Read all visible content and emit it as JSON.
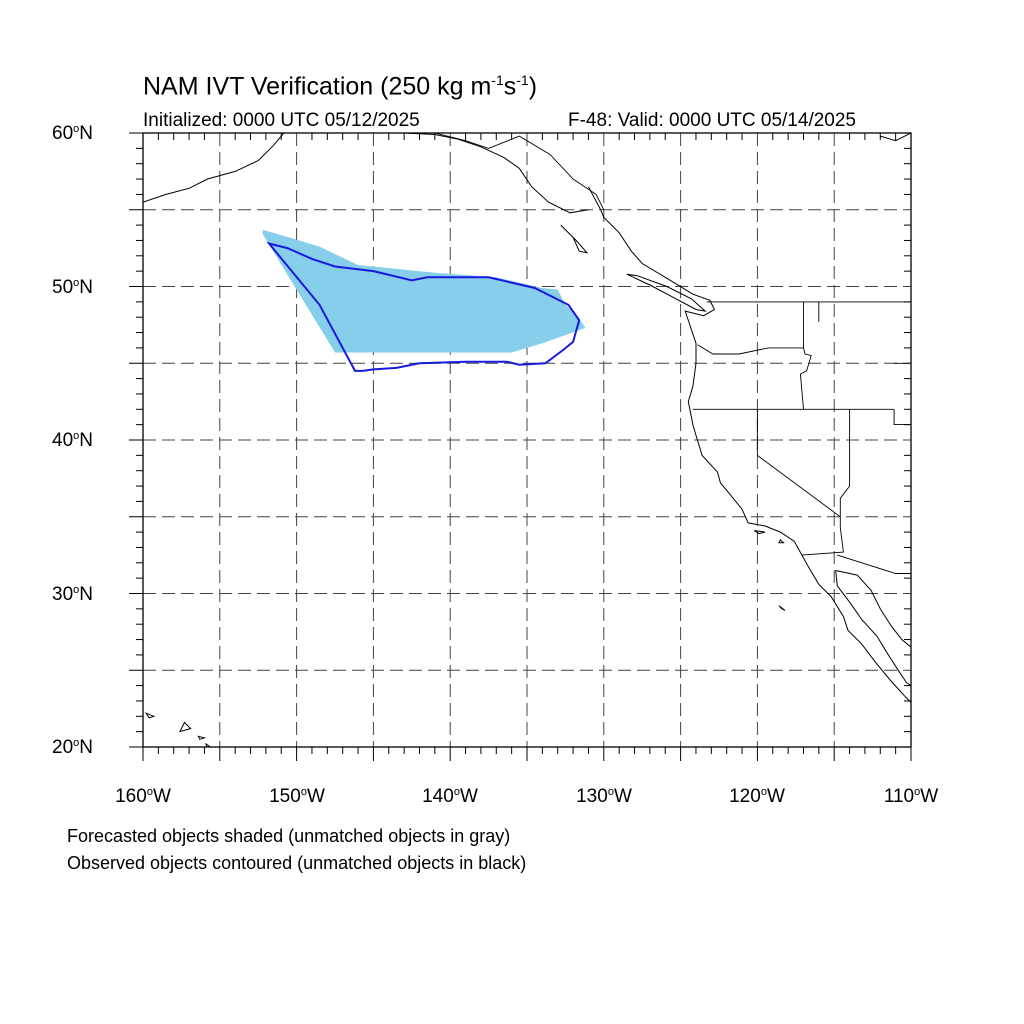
{
  "header": {
    "title_prefix": "NAM IVT Verification (250 kg m",
    "title_exp1": "-1",
    "title_mid": "s",
    "title_exp2": "-1",
    "title_suffix": ")",
    "initialized": "Initialized: 0000 UTC 05/12/2025",
    "valid": "F-48: Valid: 0000 UTC 05/14/2025"
  },
  "map": {
    "lon_range": [
      -160,
      -110
    ],
    "lat_range": [
      20,
      60
    ],
    "grid_style": "dashed",
    "lat_labels": [
      {
        "deg": "60",
        "suffix": "N"
      },
      {
        "deg": "50",
        "suffix": "N"
      },
      {
        "deg": "40",
        "suffix": "N"
      },
      {
        "deg": "30",
        "suffix": "N"
      },
      {
        "deg": "20",
        "suffix": "N"
      }
    ],
    "lon_labels": [
      {
        "deg": "160",
        "suffix": "W"
      },
      {
        "deg": "150",
        "suffix": "W"
      },
      {
        "deg": "140",
        "suffix": "W"
      },
      {
        "deg": "130",
        "suffix": "W"
      },
      {
        "deg": "120",
        "suffix": "W"
      },
      {
        "deg": "110",
        "suffix": "W"
      }
    ],
    "forecast_object": {
      "color": "#87ceeb",
      "outline_lonlat": [
        [
          -152.2,
          53.7
        ],
        [
          -150.5,
          53.2
        ],
        [
          -148.5,
          52.6
        ],
        [
          -146,
          51.4
        ],
        [
          -141,
          50.9
        ],
        [
          -137,
          50.6
        ],
        [
          -134,
          49.9
        ],
        [
          -133,
          49.8
        ],
        [
          -132.5,
          48.8
        ],
        [
          -131.8,
          48.2
        ],
        [
          -131.2,
          47.3
        ],
        [
          -132.6,
          46.8
        ],
        [
          -134,
          46.3
        ],
        [
          -136,
          45.7
        ],
        [
          -139,
          45.7
        ],
        [
          -143,
          45.7
        ],
        [
          -145,
          45.7
        ],
        [
          -147.5,
          45.7
        ],
        [
          -152.2,
          53.4
        ]
      ]
    },
    "observed_object": {
      "color": "#1a1adc",
      "outline_lonlat": [
        [
          -151.8,
          52.8
        ],
        [
          -150.6,
          52.5
        ],
        [
          -149,
          51.8
        ],
        [
          -147.5,
          51.3
        ],
        [
          -145,
          51.0
        ],
        [
          -142.5,
          50.4
        ],
        [
          -141.5,
          50.6
        ],
        [
          -137.5,
          50.6
        ],
        [
          -134.5,
          49.9
        ],
        [
          -132.3,
          48.8
        ],
        [
          -131.6,
          47.8
        ],
        [
          -132.0,
          46.4
        ],
        [
          -132.6,
          45.9
        ],
        [
          -133.8,
          45.0
        ],
        [
          -135.5,
          44.9
        ],
        [
          -136.3,
          45.1
        ],
        [
          -139,
          45.1
        ],
        [
          -142,
          45.0
        ],
        [
          -143.5,
          44.7
        ],
        [
          -145,
          44.6
        ],
        [
          -145.7,
          44.5
        ],
        [
          -146.2,
          44.5
        ],
        [
          -148.5,
          48.8
        ],
        [
          -151.8,
          52.8
        ]
      ]
    },
    "coastline_lonlat": [
      [
        [
          -110,
          60
        ],
        [
          -111,
          59.5
        ],
        [
          -112,
          59.8
        ]
      ],
      [
        [
          -131,
          56.5
        ],
        [
          -130.2,
          55
        ],
        [
          -130,
          54.5
        ],
        [
          -129,
          53.5
        ],
        [
          -128.2,
          52.3
        ],
        [
          -127.5,
          51.5
        ],
        [
          -125.5,
          50.3
        ],
        [
          -124.2,
          49.5
        ],
        [
          -123.1,
          49.1
        ],
        [
          -122.8,
          48.5
        ],
        [
          -123.5,
          48.1
        ],
        [
          -124.7,
          48.4
        ],
        [
          -124.3,
          47.2
        ],
        [
          -124,
          46.3
        ],
        [
          -124.0,
          45.0
        ],
        [
          -124.2,
          43.5
        ],
        [
          -124.5,
          42.5
        ],
        [
          -124.2,
          41.0
        ],
        [
          -124.0,
          40.3
        ],
        [
          -123.6,
          39.0
        ],
        [
          -122.6,
          37.9
        ],
        [
          -122.4,
          37.2
        ],
        [
          -121.9,
          36.6
        ],
        [
          -121.0,
          35.5
        ],
        [
          -120.6,
          34.6
        ],
        [
          -119.5,
          34.4
        ],
        [
          -118.5,
          34.0
        ],
        [
          -117.6,
          33.4
        ],
        [
          -117.1,
          32.5
        ],
        [
          -116.6,
          31.6
        ],
        [
          -116.0,
          30.6
        ],
        [
          -115.2,
          29.8
        ],
        [
          -114.4,
          28.5
        ],
        [
          -114.1,
          27.6
        ],
        [
          -113.2,
          26.7
        ],
        [
          -112.3,
          25.5
        ],
        [
          -111.3,
          24.3
        ],
        [
          -110.3,
          23.2
        ],
        [
          -110,
          22.9
        ]
      ],
      [
        [
          -114.9,
          31.5
        ],
        [
          -114.8,
          30.5
        ],
        [
          -113.9,
          29.3
        ],
        [
          -113.2,
          28.3
        ],
        [
          -112.2,
          27.2
        ],
        [
          -111.6,
          26.2
        ],
        [
          -110.9,
          25.1
        ],
        [
          -110.3,
          24.2
        ],
        [
          -110,
          24.0
        ]
      ],
      [
        [
          -114.9,
          31.5
        ],
        [
          -113.5,
          31.2
        ],
        [
          -112.6,
          30.2
        ],
        [
          -112,
          29.0
        ],
        [
          -111.3,
          27.9
        ],
        [
          -110.6,
          27.0
        ],
        [
          -110,
          26.5
        ]
      ],
      [
        [
          -150,
          61
        ],
        [
          -151.5,
          59.2
        ],
        [
          -152.5,
          58.2
        ],
        [
          -154,
          57.5
        ],
        [
          -155.8,
          57.0
        ],
        [
          -157,
          56.4
        ],
        [
          -158.5,
          56.0
        ],
        [
          -160,
          55.5
        ]
      ],
      [
        [
          -147,
          60.8
        ],
        [
          -145,
          60.3
        ],
        [
          -143,
          60.0
        ],
        [
          -141,
          59.9
        ],
        [
          -139.5,
          59.6
        ],
        [
          -138,
          59.1
        ],
        [
          -136.5,
          58.4
        ],
        [
          -135.5,
          57.7
        ],
        [
          -134.7,
          56.5
        ],
        [
          -133.6,
          55.5
        ],
        [
          -132.2,
          54.8
        ],
        [
          -131,
          55
        ]
      ]
    ],
    "islands_lonlat": [
      [
        [
          -132.8,
          54.0
        ],
        [
          -132.0,
          53.2
        ],
        [
          -131.6,
          52.3
        ],
        [
          -131.1,
          52.2
        ],
        [
          -131.8,
          53.0
        ],
        [
          -132.8,
          54.0
        ]
      ],
      [
        [
          -128.5,
          50.8
        ],
        [
          -127,
          50.1
        ],
        [
          -125.5,
          49.3
        ],
        [
          -124,
          48.5
        ],
        [
          -123.4,
          48.4
        ],
        [
          -124.3,
          49.2
        ],
        [
          -125.9,
          50.0
        ],
        [
          -127.8,
          50.7
        ],
        [
          -128.5,
          50.8
        ]
      ],
      [
        [
          -159.8,
          22.2
        ],
        [
          -159.3,
          22.0
        ],
        [
          -159.6,
          21.9
        ],
        [
          -159.8,
          22.2
        ]
      ],
      [
        [
          -157.3,
          21.6
        ],
        [
          -156.9,
          21.2
        ],
        [
          -157.6,
          21.0
        ],
        [
          -157.3,
          21.6
        ]
      ],
      [
        [
          -156.4,
          20.7
        ],
        [
          -156.0,
          20.6
        ],
        [
          -156.3,
          20.5
        ],
        [
          -156.4,
          20.7
        ]
      ],
      [
        [
          -155.9,
          20.2
        ],
        [
          -154.9,
          19.5
        ],
        [
          -155.6,
          19.0
        ],
        [
          -155.9,
          20.2
        ]
      ],
      [
        [
          -118.5,
          33.5
        ],
        [
          -118.3,
          33.3
        ],
        [
          -118.6,
          33.3
        ],
        [
          -118.5,
          33.5
        ]
      ],
      [
        [
          -120.2,
          34.1
        ],
        [
          -119.5,
          34.0
        ],
        [
          -119.9,
          33.9
        ],
        [
          -120.2,
          34.1
        ]
      ],
      [
        [
          -118.6,
          29.2
        ],
        [
          -118.2,
          28.9
        ],
        [
          -118.4,
          29.0
        ],
        [
          -118.6,
          29.2
        ]
      ]
    ],
    "borders_lonlat": [
      [
        [
          -123.3,
          49.0
        ],
        [
          -110,
          49.0
        ]
      ],
      [
        [
          -141,
          60
        ],
        [
          -139,
          59.5
        ],
        [
          -137.5,
          59
        ],
        [
          -135.5,
          59.8
        ],
        [
          -133.5,
          58.6
        ],
        [
          -132,
          57.0
        ],
        [
          -130.5,
          56.0
        ],
        [
          -130,
          55.0
        ]
      ],
      [
        [
          -117.0,
          49.0
        ],
        [
          -117.0,
          46.0
        ],
        [
          -116.9,
          45.6
        ],
        [
          -116.5,
          45.5
        ],
        [
          -116.8,
          44.5
        ],
        [
          -117.2,
          44.3
        ],
        [
          -117.0,
          42.0
        ]
      ],
      [
        [
          -124.2,
          42.0
        ],
        [
          -111.1,
          42.0
        ]
      ],
      [
        [
          -123.9,
          46.2
        ],
        [
          -122.9,
          45.6
        ],
        [
          -121.2,
          45.6
        ],
        [
          -119.3,
          46.0
        ],
        [
          -117,
          46.0
        ]
      ],
      [
        [
          -120.0,
          42.0
        ],
        [
          -120.0,
          39.0
        ],
        [
          -114.6,
          35.0
        ]
      ],
      [
        [
          -114.6,
          35.0
        ],
        [
          -114.6,
          34.3
        ],
        [
          -114.4,
          32.7
        ],
        [
          -117.1,
          32.5
        ]
      ],
      [
        [
          -114.8,
          32.5
        ],
        [
          -111.0,
          31.3
        ],
        [
          -110,
          31.3
        ]
      ],
      [
        [
          -114.0,
          42.0
        ],
        [
          -114.0,
          37.0
        ],
        [
          -114.6,
          36.2
        ],
        [
          -114.6,
          35.0
        ]
      ],
      [
        [
          -111.1,
          42.0
        ],
        [
          -111.1,
          41.0
        ],
        [
          -110,
          41.0
        ]
      ],
      [
        [
          -111.1,
          45.0
        ],
        [
          -110,
          45.0
        ]
      ],
      [
        [
          -116.0,
          49
        ],
        [
          -116,
          47.7
        ]
      ]
    ]
  },
  "footer": {
    "note1": "Forecasted objects shaded (unmatched objects in gray)",
    "note2": "Observed objects contoured (unmatched objects in black)"
  }
}
